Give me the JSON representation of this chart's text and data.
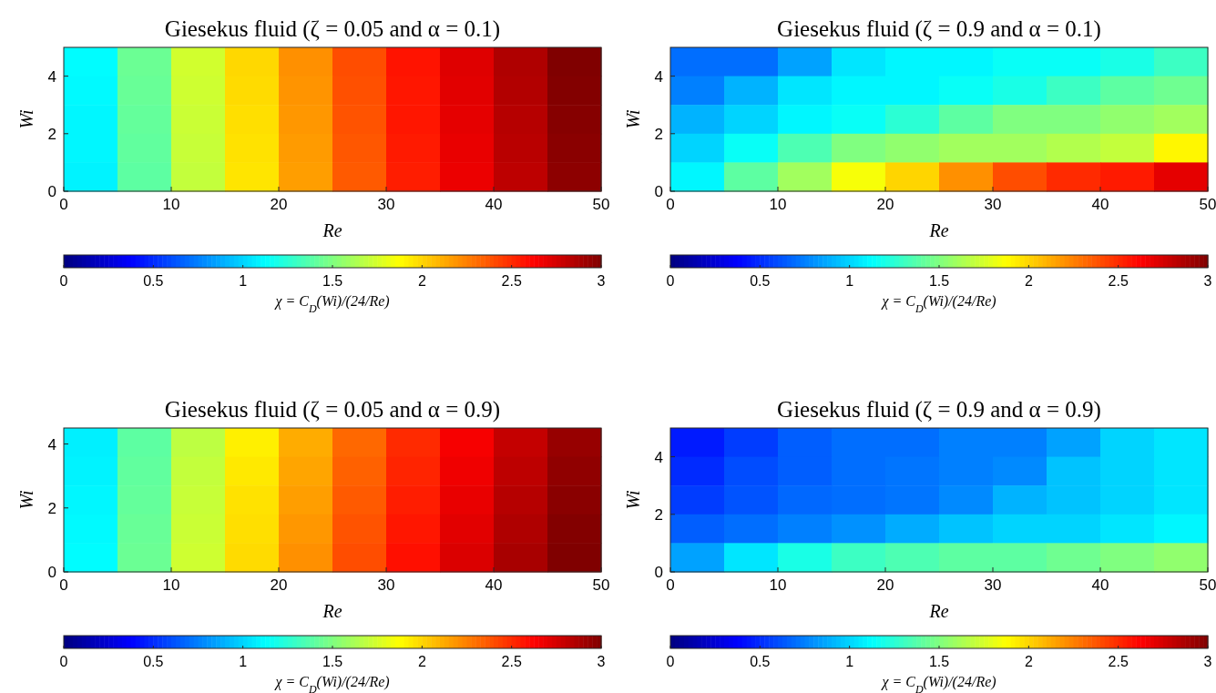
{
  "chart_data": [
    {
      "type": "heatmap",
      "title": "Giesekus fluid (ζ = 0.05 and α = 0.1)",
      "xlabel": "Re",
      "ylabel": "Wi",
      "clabel": "χ = C$_{D}$(Wi)/(24/Re)",
      "x": [
        2.5,
        7.5,
        12.5,
        17.5,
        22.5,
        27.5,
        32.5,
        37.5,
        42.5,
        47.5
      ],
      "y": [
        4.5,
        3.5,
        2.5,
        1.5,
        0.5
      ],
      "cells": [
        [
          1.12,
          1.44,
          1.74,
          1.99,
          2.2,
          2.4,
          2.57,
          2.72,
          2.86,
          3.0
        ],
        [
          1.11,
          1.43,
          1.73,
          1.98,
          2.19,
          2.39,
          2.56,
          2.71,
          2.85,
          2.99
        ],
        [
          1.1,
          1.42,
          1.72,
          1.97,
          2.18,
          2.38,
          2.56,
          2.7,
          2.84,
          2.98
        ],
        [
          1.1,
          1.41,
          1.71,
          1.96,
          2.17,
          2.37,
          2.55,
          2.69,
          2.83,
          2.97
        ],
        [
          1.09,
          1.4,
          1.7,
          1.95,
          2.16,
          2.36,
          2.54,
          2.68,
          2.82,
          2.96
        ]
      ],
      "xlim": [
        0,
        50
      ],
      "ylim": [
        0,
        5
      ],
      "xticks": [
        0,
        10,
        20,
        30,
        40,
        50
      ],
      "yticks": [
        0,
        2,
        4
      ],
      "clim": [
        0,
        3
      ],
      "cticks": [
        0,
        0.5,
        1,
        1.5,
        2,
        2.5,
        3
      ]
    },
    {
      "type": "heatmap",
      "title": "Giesekus fluid (ζ = 0.9 and α = 0.1)",
      "xlabel": "Re",
      "ylabel": "Wi",
      "clabel": "χ = C$_{D}$(Wi)/(24/Re)",
      "x": [
        2.5,
        7.5,
        12.5,
        17.5,
        22.5,
        27.5,
        32.5,
        37.5,
        42.5,
        47.5
      ],
      "y": [
        4.5,
        3.5,
        2.5,
        1.5,
        0.5
      ],
      "cells": [
        [
          0.7,
          0.7,
          0.85,
          1.05,
          1.1,
          1.1,
          1.15,
          1.15,
          1.2,
          1.3
        ],
        [
          0.75,
          0.9,
          1.05,
          1.1,
          1.1,
          1.15,
          1.2,
          1.3,
          1.4,
          1.45
        ],
        [
          0.9,
          1.0,
          1.1,
          1.15,
          1.25,
          1.4,
          1.5,
          1.5,
          1.55,
          1.6
        ],
        [
          1.0,
          1.15,
          1.35,
          1.5,
          1.55,
          1.6,
          1.6,
          1.65,
          1.7,
          1.9
        ],
        [
          1.1,
          1.4,
          1.6,
          1.85,
          2.0,
          2.2,
          2.4,
          2.5,
          2.55,
          2.7
        ]
      ],
      "xlim": [
        0,
        50
      ],
      "ylim": [
        0,
        5
      ],
      "xticks": [
        0,
        10,
        20,
        30,
        40,
        50
      ],
      "yticks": [
        0,
        2,
        4
      ],
      "clim": [
        0,
        3
      ],
      "cticks": [
        0,
        0.5,
        1,
        1.5,
        2,
        2.5,
        3
      ]
    },
    {
      "type": "heatmap",
      "title": "Giesekus fluid (ζ = 0.05 and α = 0.9)",
      "xlabel": "Re",
      "ylabel": "Wi",
      "clabel": "χ = C$_{D}$(Wi)/(24/Re)",
      "x": [
        2.5,
        7.5,
        12.5,
        17.5,
        22.5,
        27.5,
        32.5,
        37.5,
        42.5,
        47.5
      ],
      "y": [
        4.05,
        3.15,
        2.25,
        1.35,
        0.45
      ],
      "cells": [
        [
          1.08,
          1.4,
          1.68,
          1.92,
          2.12,
          2.32,
          2.5,
          2.65,
          2.8,
          2.93
        ],
        [
          1.09,
          1.41,
          1.7,
          1.94,
          2.14,
          2.34,
          2.52,
          2.67,
          2.82,
          2.95
        ],
        [
          1.1,
          1.42,
          1.71,
          1.96,
          2.16,
          2.36,
          2.54,
          2.69,
          2.84,
          2.97
        ],
        [
          1.11,
          1.43,
          1.72,
          1.97,
          2.18,
          2.38,
          2.56,
          2.71,
          2.86,
          2.99
        ],
        [
          1.12,
          1.44,
          1.73,
          1.98,
          2.2,
          2.4,
          2.58,
          2.73,
          2.88,
          3.0
        ]
      ],
      "xlim": [
        0,
        50
      ],
      "ylim": [
        0,
        4.5
      ],
      "xticks": [
        0,
        10,
        20,
        30,
        40,
        50
      ],
      "yticks": [
        0,
        2,
        4
      ],
      "clim": [
        0,
        3
      ],
      "cticks": [
        0,
        0.5,
        1,
        1.5,
        2,
        2.5,
        3
      ]
    },
    {
      "type": "heatmap",
      "title": "Giesekus fluid (ζ = 0.9 and α = 0.9)",
      "xlabel": "Re",
      "ylabel": "Wi",
      "clabel": "χ = C$_{D}$(Wi)/(24/Re)",
      "x": [
        2.5,
        7.5,
        12.5,
        17.5,
        22.5,
        27.5,
        32.5,
        37.5,
        42.5,
        47.5
      ],
      "y": [
        4.5,
        3.5,
        2.5,
        1.5,
        0.5
      ],
      "cells": [
        [
          0.45,
          0.55,
          0.65,
          0.7,
          0.7,
          0.75,
          0.75,
          0.85,
          1.0,
          1.05
        ],
        [
          0.5,
          0.6,
          0.65,
          0.7,
          0.72,
          0.75,
          0.78,
          0.95,
          1.0,
          1.05
        ],
        [
          0.55,
          0.62,
          0.68,
          0.7,
          0.72,
          0.78,
          0.9,
          0.95,
          1.0,
          1.05
        ],
        [
          0.65,
          0.7,
          0.75,
          0.8,
          0.88,
          0.95,
          1.0,
          1.0,
          1.05,
          1.1
        ],
        [
          0.85,
          1.05,
          1.2,
          1.3,
          1.35,
          1.4,
          1.4,
          1.45,
          1.5,
          1.55
        ]
      ],
      "xlim": [
        0,
        50
      ],
      "ylim": [
        0,
        5
      ],
      "xticks": [
        0,
        10,
        20,
        30,
        40,
        50
      ],
      "yticks": [
        0,
        2,
        4
      ],
      "clim": [
        0,
        3
      ],
      "cticks": [
        0,
        0.5,
        1,
        1.5,
        2,
        2.5,
        3
      ]
    }
  ]
}
